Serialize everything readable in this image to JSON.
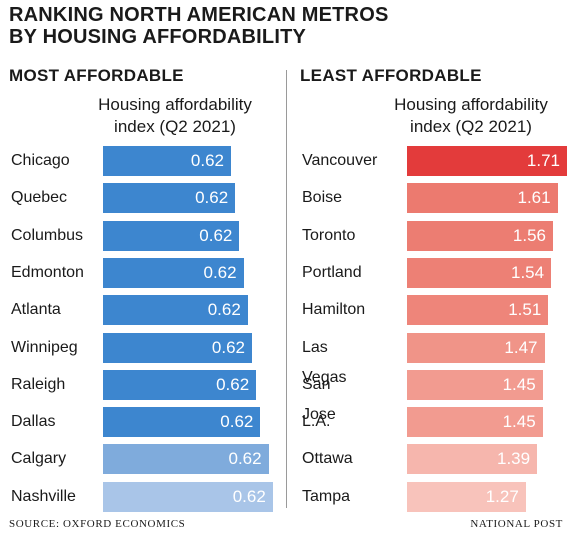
{
  "title": {
    "line1": "RANKING NORTH AMERICAN METROS",
    "line2": "BY HOUSING AFFORDABILITY"
  },
  "footer": {
    "source": "SOURCE: OXFORD ECONOMICS",
    "publisher": "NATIONAL POST"
  },
  "chart_data": [
    {
      "type": "bar",
      "orientation": "horizontal",
      "section_title": "MOST AFFORDABLE",
      "header_line1": "Housing affordability",
      "header_line2": "index (Q2 2021)",
      "categories": [
        "Chicago",
        "Quebec",
        "Columbus",
        "Edmonton",
        "Atlanta",
        "Winnipeg",
        "Raleigh",
        "Dallas",
        "Calgary",
        "Nashville"
      ],
      "values": [
        0.62,
        0.62,
        0.62,
        0.62,
        0.62,
        0.62,
        0.62,
        0.62,
        0.62,
        0.62
      ],
      "value_labels": [
        "0.62",
        "0.62",
        "0.62",
        "0.62",
        "0.62",
        "0.62",
        "0.62",
        "0.62",
        "0.62",
        "0.62"
      ],
      "colors": [
        "#3d86cf",
        "#3d86cf",
        "#3d86cf",
        "#3d86cf",
        "#3d86cf",
        "#3d86cf",
        "#3d86cf",
        "#3d86cf",
        "#7fabdc",
        "#a9c5e8"
      ]
    },
    {
      "type": "bar",
      "orientation": "horizontal",
      "section_title": "LEAST AFFORDABLE",
      "header_line1": "Housing affordability",
      "header_line2": "index (Q2 2021)",
      "categories": [
        "Vancouver",
        "Boise",
        "Toronto",
        "Portland",
        "Hamilton",
        "Las Vegas",
        "San Jose",
        "L.A.",
        "Ottawa",
        "Tampa"
      ],
      "values": [
        1.71,
        1.61,
        1.56,
        1.54,
        1.51,
        1.47,
        1.45,
        1.45,
        1.39,
        1.27
      ],
      "value_labels": [
        "1.71",
        "1.61",
        "1.56",
        "1.54",
        "1.51",
        "1.47",
        "1.45",
        "1.45",
        "1.39",
        "1.27"
      ],
      "colors": [
        "#e33b3b",
        "#ec7a6f",
        "#ec7d72",
        "#ed8075",
        "#ee857a",
        "#f09488",
        "#f29b90",
        "#f29b90",
        "#f6b6ad",
        "#f8c3bb"
      ]
    }
  ]
}
